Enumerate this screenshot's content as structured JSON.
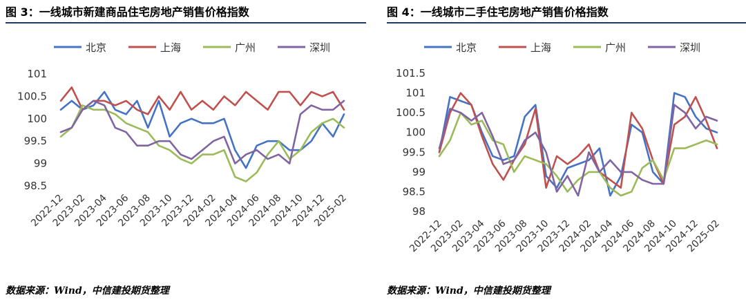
{
  "panels": [
    {
      "title": "图 3：一线城市新建商品住宅房地产销售价格指数",
      "source": "数据来源：Wind，中信建投期货整理"
    },
    {
      "title": "图 4：一线城市二手住宅房地产销售价格指数",
      "source": "数据来源：Wind，中信建投期货整理"
    }
  ],
  "chart_data": [
    {
      "type": "line",
      "title": "图 3：一线城市新建商品住宅房地产销售价格指数",
      "x": [
        "2022-12",
        "2023-01",
        "2023-02",
        "2023-03",
        "2023-04",
        "2023-05",
        "2023-06",
        "2023-07",
        "2023-08",
        "2023-09",
        "2023-10",
        "2023-11",
        "2023-12",
        "2023-13",
        "2024-02",
        "2024-03",
        "2024-04",
        "2024-05",
        "2024-06",
        "2024-07",
        "2024-08",
        "2024-09",
        "2024-10",
        "2024-11",
        "2024-12",
        "2025-01",
        "2025-02"
      ],
      "xticks": [
        "2022-12",
        "2023-02",
        "2023-04",
        "2023-06",
        "2023-08",
        "2023-10",
        "2023-12",
        "2024-02",
        "2024-04",
        "2024-06",
        "2024-08",
        "2024-10",
        "2024-12",
        "2025-02"
      ],
      "yticks": [
        "98.5",
        "99",
        "99.5",
        "100",
        "100.5",
        "101"
      ],
      "ylim": [
        98.5,
        101
      ],
      "grid": false,
      "legend": "top",
      "series": [
        {
          "name": "北京",
          "color": "#4472c4",
          "values": [
            100.2,
            100.4,
            100.2,
            100.3,
            100.6,
            100.2,
            100.1,
            100.4,
            99.8,
            100.4,
            99.6,
            99.9,
            100.0,
            99.9,
            99.9,
            100.0,
            99.3,
            98.9,
            99.4,
            99.5,
            99.5,
            99.3,
            99.3,
            99.5,
            99.9,
            99.6,
            100.1
          ]
        },
        {
          "name": "上海",
          "color": "#c0504d",
          "values": [
            100.4,
            100.7,
            100.2,
            100.4,
            100.4,
            100.3,
            100.4,
            100.2,
            100.1,
            100.5,
            100.2,
            100.6,
            100.2,
            100.4,
            100.2,
            100.5,
            100.3,
            100.6,
            100.4,
            100.2,
            100.6,
            100.6,
            100.3,
            100.6,
            100.5,
            100.6,
            100.2
          ]
        },
        {
          "name": "广州",
          "color": "#9bbb59",
          "values": [
            99.6,
            99.8,
            100.3,
            100.2,
            100.2,
            100.1,
            99.9,
            99.8,
            99.7,
            99.4,
            99.3,
            99.1,
            99.0,
            99.2,
            99.2,
            99.3,
            98.7,
            98.6,
            98.8,
            99.2,
            99.5,
            99.1,
            99.3,
            99.7,
            99.9,
            100.0,
            99.8
          ]
        },
        {
          "name": "深圳",
          "color": "#8064a2",
          "values": [
            99.7,
            99.8,
            100.2,
            100.4,
            100.3,
            99.8,
            99.7,
            99.4,
            99.4,
            99.5,
            99.5,
            99.2,
            99.1,
            99.3,
            99.5,
            99.6,
            99.0,
            99.2,
            99.3,
            99.1,
            99.2,
            99.0,
            100.1,
            100.3,
            100.2,
            100.2,
            100.4
          ]
        }
      ]
    },
    {
      "type": "line",
      "title": "图 4：一线城市二手住宅房地产销售价格指数",
      "x": [
        "2022-12",
        "2023-01",
        "2023-02",
        "2023-03",
        "2023-04",
        "2023-05",
        "2023-06",
        "2023-07",
        "2023-08",
        "2023-09",
        "2023-10",
        "2023-11",
        "2023-12",
        "2023-13",
        "2024-02",
        "2024-03",
        "2024-04",
        "2024-05",
        "2024-06",
        "2024-07",
        "2024-08",
        "2024-09",
        "2024-10",
        "2024-11",
        "2024-12",
        "2025-01",
        "2025-02"
      ],
      "xticks": [
        "2022-12",
        "2023-02",
        "2023-04",
        "2023-06",
        "2023-08",
        "2023-10",
        "2023-12",
        "2024-02",
        "2024-04",
        "2024-06",
        "2024-08",
        "2024-10",
        "2024-12",
        "2025-02"
      ],
      "yticks": [
        "98",
        "98.5",
        "99",
        "99.5",
        "100",
        "100.5",
        "101",
        "101.5"
      ],
      "ylim": [
        98,
        101.5
      ],
      "grid": false,
      "legend": "top",
      "series": [
        {
          "name": "北京",
          "color": "#4472c4",
          "values": [
            99.5,
            100.9,
            100.8,
            100.7,
            100.0,
            99.4,
            99.3,
            99.4,
            100.4,
            100.7,
            98.9,
            98.6,
            99.1,
            99.2,
            99.3,
            99.6,
            98.4,
            98.9,
            100.2,
            100.0,
            99.0,
            98.7,
            101.0,
            100.9,
            100.4,
            100.1,
            100.0
          ]
        },
        {
          "name": "上海",
          "color": "#c0504d",
          "values": [
            99.5,
            100.5,
            101.0,
            100.7,
            99.9,
            99.2,
            98.8,
            99.3,
            99.7,
            100.6,
            98.6,
            99.4,
            99.2,
            99.4,
            99.7,
            99.0,
            98.8,
            98.6,
            100.5,
            100.1,
            99.3,
            98.7,
            100.2,
            100.4,
            100.9,
            100.3,
            99.6
          ]
        },
        {
          "name": "广州",
          "color": "#9bbb59",
          "values": [
            99.4,
            99.8,
            100.5,
            100.2,
            100.3,
            99.8,
            99.7,
            99.0,
            99.4,
            99.3,
            99.2,
            98.9,
            98.5,
            98.8,
            99.0,
            99.0,
            98.6,
            98.4,
            98.5,
            99.1,
            99.3,
            98.8,
            99.6,
            99.6,
            99.7,
            99.8,
            99.7
          ]
        },
        {
          "name": "深圳",
          "color": "#8064a2",
          "values": [
            99.6,
            100.6,
            100.5,
            100.3,
            100.5,
            99.9,
            99.2,
            99.3,
            99.8,
            100.0,
            99.5,
            98.5,
            98.9,
            98.4,
            99.5,
            99.0,
            99.3,
            99.0,
            99.0,
            98.8,
            98.7,
            98.7,
            100.7,
            100.5,
            100.1,
            100.4,
            100.3
          ]
        }
      ]
    }
  ]
}
